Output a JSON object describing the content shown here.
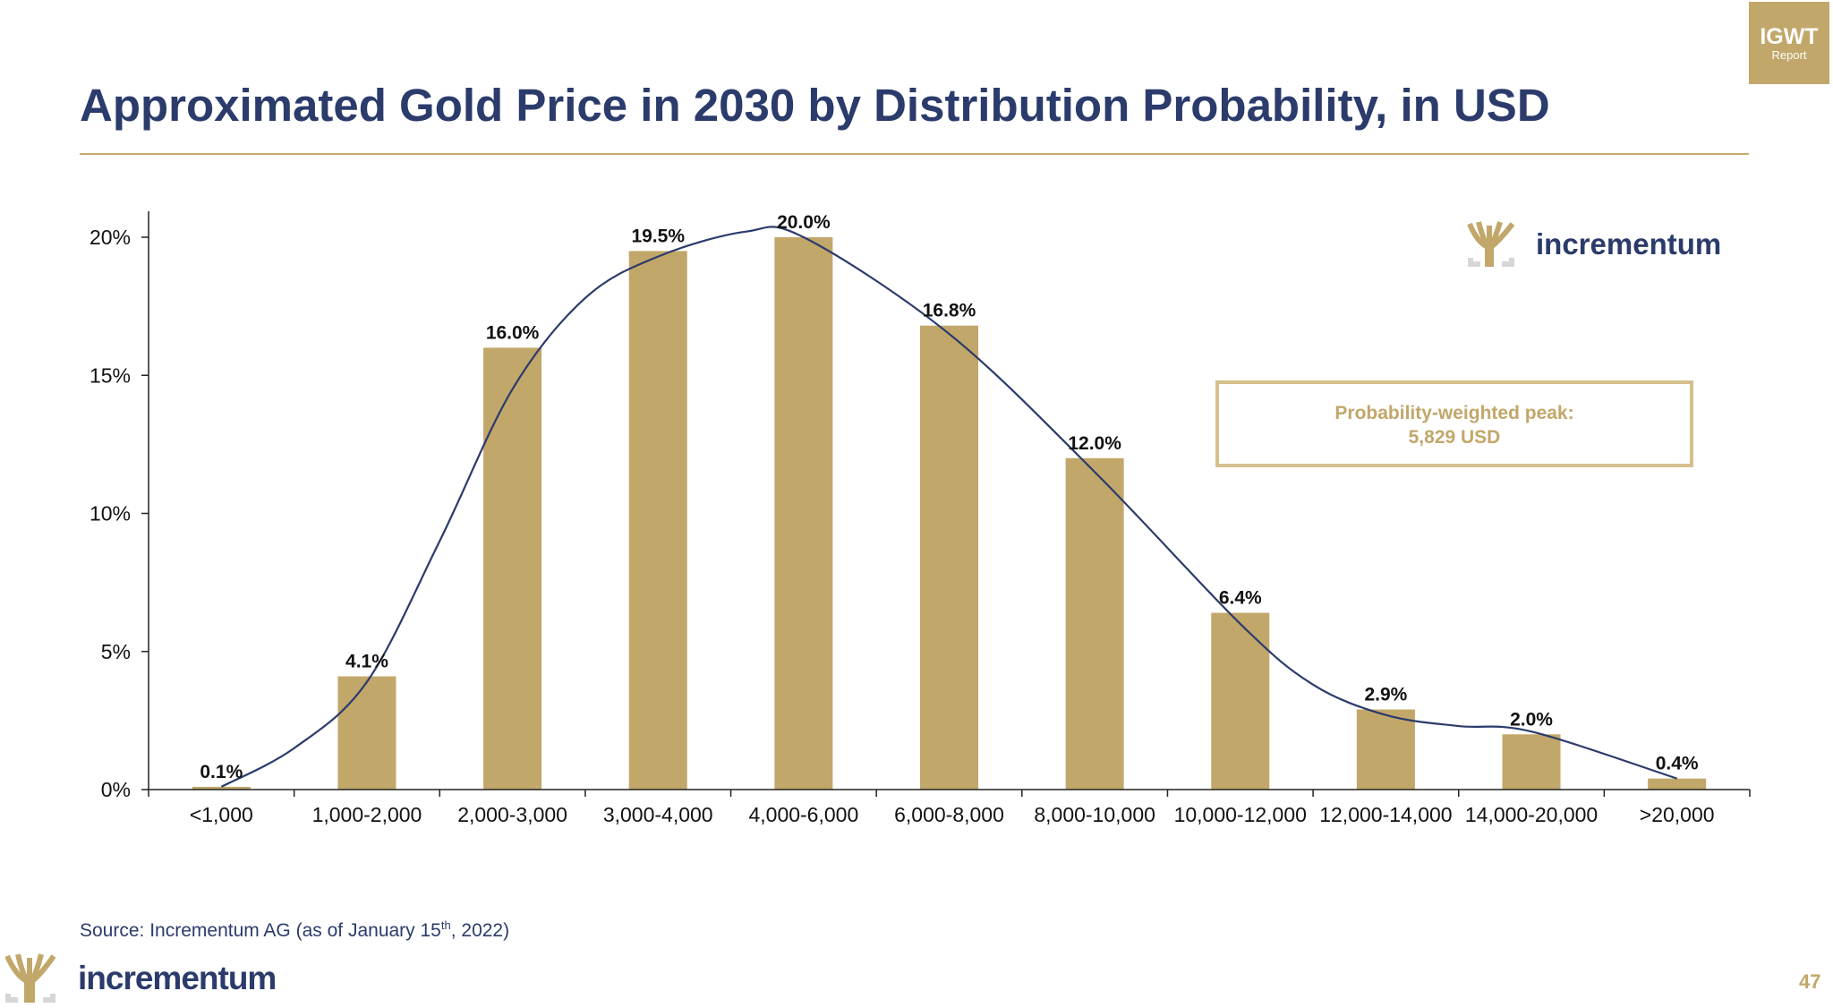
{
  "badge": {
    "line1": "IGWT",
    "line2": "Report"
  },
  "source": {
    "prefix": "Source: Incrementum AG (as of January 15",
    "sup": "th",
    "suffix": ", 2022)"
  },
  "footer": {
    "brand": "incrementum",
    "page_number": "47"
  },
  "colors": {
    "bar": "#c2a76a",
    "navy": "#2b3b6b",
    "gold": "#c5aa6a"
  },
  "chart_data": {
    "type": "bar",
    "title": "Approximated Gold Price in 2030 by Distribution Probability, in USD",
    "xlabel": "",
    "ylabel": "",
    "categories": [
      "<1,000",
      "1,000-2,000",
      "2,000-3,000",
      "3,000-4,000",
      "4,000-6,000",
      "6,000-8,000",
      "8,000-10,000",
      "10,000-12,000",
      "12,000-14,000",
      "14,000-20,000",
      ">20,000"
    ],
    "values": [
      0.1,
      4.1,
      16.0,
      19.5,
      20.0,
      16.8,
      12.0,
      6.4,
      2.9,
      2.0,
      0.4
    ],
    "data_labels": [
      "0.1%",
      "4.1%",
      "16.0%",
      "19.5%",
      "20.0%",
      "16.8%",
      "12.0%",
      "6.4%",
      "2.9%",
      "2.0%",
      "0.4%"
    ],
    "ylim": [
      0,
      20.5
    ],
    "yticks": [
      {
        "v": 0,
        "label": "0%"
      },
      {
        "v": 5,
        "label": "5%"
      },
      {
        "v": 10,
        "label": "10%"
      },
      {
        "v": 15,
        "label": "15%"
      },
      {
        "v": 20,
        "label": "20%"
      }
    ],
    "grid": false,
    "fitted_curve": [
      [
        0,
        0.1
      ],
      [
        0.5,
        1.5
      ],
      [
        1,
        3.9
      ],
      [
        1.5,
        9.0
      ],
      [
        2,
        14.5
      ],
      [
        2.5,
        17.8
      ],
      [
        3,
        19.3
      ],
      [
        3.6,
        20.2
      ],
      [
        4,
        20.0
      ],
      [
        5,
        16.5
      ],
      [
        6,
        11.5
      ],
      [
        7,
        6.0
      ],
      [
        7.5,
        3.8
      ],
      [
        8,
        2.7
      ],
      [
        8.5,
        2.3
      ],
      [
        9,
        2.1
      ],
      [
        10,
        0.4
      ]
    ],
    "annotation": {
      "line1": "Probability-weighted peak:",
      "line2": "5,829 USD"
    },
    "logo_text": "incrementum"
  }
}
